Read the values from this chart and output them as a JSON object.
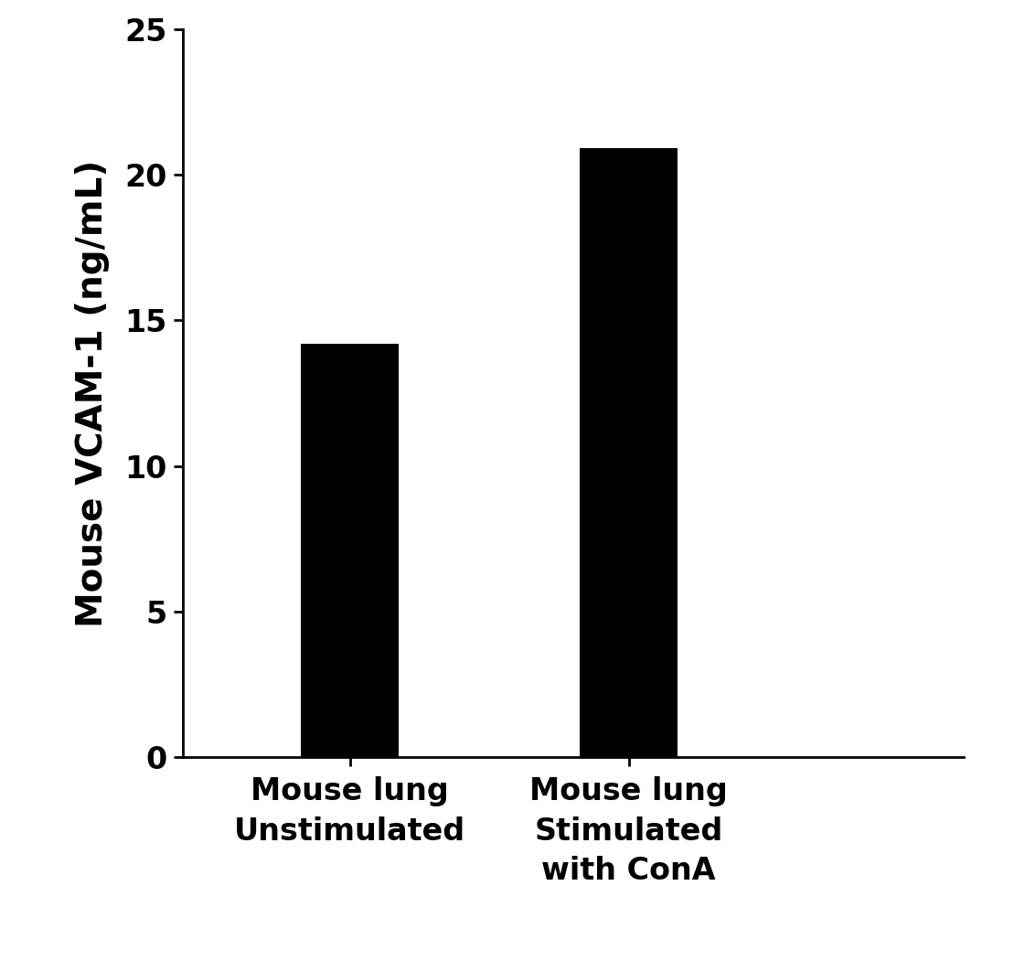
{
  "categories": [
    "Mouse lung\nUnstimulated",
    "Mouse lung\nStimulated\nwith ConA"
  ],
  "values": [
    14.2,
    20.9
  ],
  "bar_color": "#000000",
  "bar_width": 0.35,
  "ylabel": "Mouse VCAM-1 (ng/mL)",
  "ylim": [
    0,
    25
  ],
  "yticks": [
    0,
    5,
    10,
    15,
    20,
    25
  ],
  "background_color": "#ffffff",
  "ylabel_fontsize": 28,
  "tick_fontsize": 24,
  "xlabel_fontsize": 24,
  "bar_positions": [
    1,
    2
  ],
  "xlim": [
    0.4,
    3.2
  ]
}
